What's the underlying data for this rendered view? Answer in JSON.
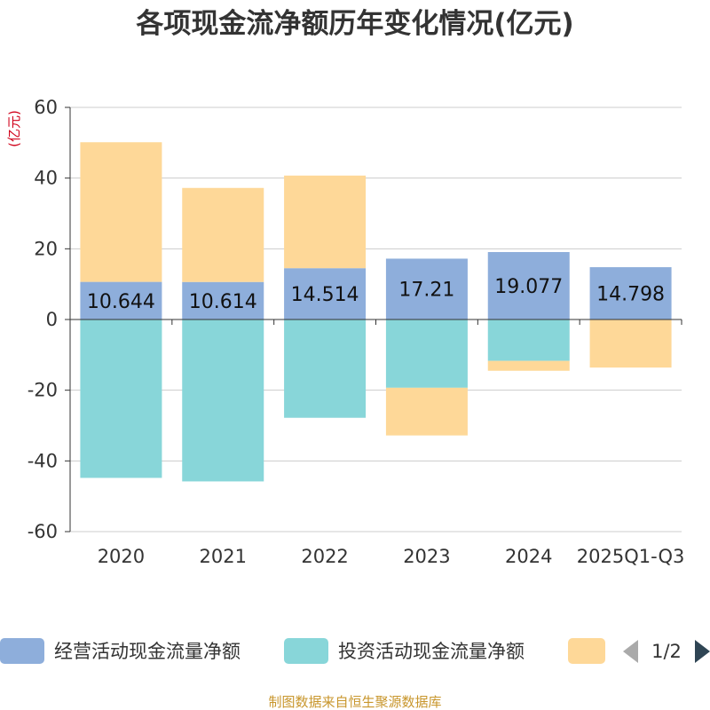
{
  "chart_data": {
    "type": "bar",
    "stacked": true,
    "title": "各项现金流净额历年变化情况(亿元)",
    "ylabel": "(亿元)",
    "xlabel": "",
    "ylim": [
      -60,
      60
    ],
    "yticks": [
      -60,
      -40,
      -20,
      0,
      20,
      40,
      60
    ],
    "grid": true,
    "categories": [
      "2020",
      "2021",
      "2022",
      "2023",
      "2024",
      "2025Q1-Q3"
    ],
    "series": [
      {
        "name": "经营活动现金流量净额",
        "color": "#8eaedb",
        "values": [
          10.644,
          10.614,
          14.514,
          17.21,
          19.077,
          14.798
        ],
        "labels": [
          "10.644",
          "10.614",
          "14.514",
          "17.21",
          "19.077",
          "14.798"
        ]
      },
      {
        "name": "投资活动现金流量净额",
        "color": "#88d6d9",
        "values": [
          -44.8,
          -45.8,
          -27.8,
          -19.3,
          -11.7,
          0
        ]
      },
      {
        "name": "",
        "color": "#fed898",
        "values": [
          39.5,
          26.6,
          26.2,
          -13.5,
          -2.8,
          -13.6
        ]
      }
    ],
    "legend": {
      "position": "bottom",
      "page": "1/2"
    },
    "source": "制图数据来自恒生聚源数据库"
  },
  "colors": {
    "axis": "#333333",
    "grid": "#cccccc",
    "nav_active": "#2f4554",
    "nav_inactive": "#aaaaaa"
  }
}
